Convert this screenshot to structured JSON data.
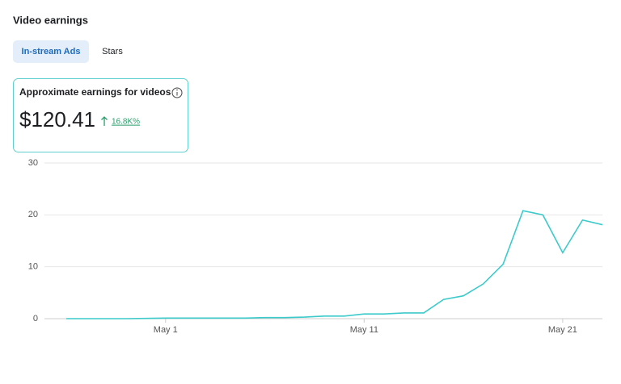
{
  "header": {
    "title": "Video earnings"
  },
  "tabs": [
    "In-stream Ads",
    "Stars"
  ],
  "card": {
    "label": "Approximate earnings for videos",
    "amount": "$120.41",
    "change": "16.8K%"
  },
  "chart_data": {
    "type": "line",
    "categories": [
      null,
      null,
      null,
      null,
      null,
      "May 1",
      null,
      null,
      null,
      null,
      null,
      null,
      null,
      null,
      null,
      "May 11",
      null,
      null,
      null,
      null,
      null,
      null,
      null,
      null,
      null,
      "May 21",
      null,
      null
    ],
    "series": [
      {
        "color": "#3ccaca",
        "values": [
          0,
          0,
          0,
          0,
          0.05,
          0.1,
          0.1,
          0.1,
          0.1,
          0.1,
          0.2,
          0.2,
          0.3,
          0.5,
          0.5,
          0.9,
          0.9,
          1.1,
          1.1,
          3.7,
          4.4,
          6.7,
          10.5,
          20.8,
          20,
          12.7,
          19,
          18.1
        ]
      }
    ],
    "ylim": [
      0,
      30
    ],
    "yticks": [
      0,
      10,
      20,
      30
    ],
    "grid": true
  }
}
